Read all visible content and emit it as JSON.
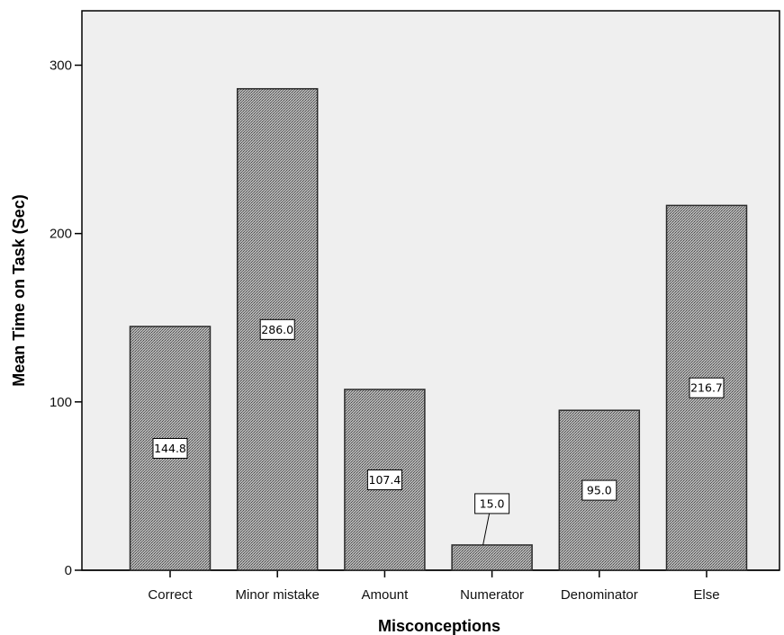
{
  "chart_data": {
    "type": "bar",
    "categories": [
      "Correct",
      "Minor mistake",
      "Amount",
      "Numerator",
      "Denominator",
      "Else"
    ],
    "values": [
      144.8,
      286.0,
      107.4,
      15.0,
      95.0,
      216.7
    ],
    "value_labels": [
      "144.8",
      "286.0",
      "107.4",
      "15.0",
      "95.0",
      "216.7"
    ],
    "xlabel": "Misconceptions",
    "ylabel": "Mean Time on Task (Sec)",
    "ylim": [
      0,
      330
    ],
    "yticks": [
      0,
      100,
      200,
      300
    ],
    "ytick_labels": [
      "0",
      "100",
      "200",
      "300"
    ],
    "grid": false,
    "colors": {
      "plot_background": "#efefef",
      "bar_fill": "#a6a6a6",
      "bar_stroke": "#2b2b2b"
    }
  }
}
